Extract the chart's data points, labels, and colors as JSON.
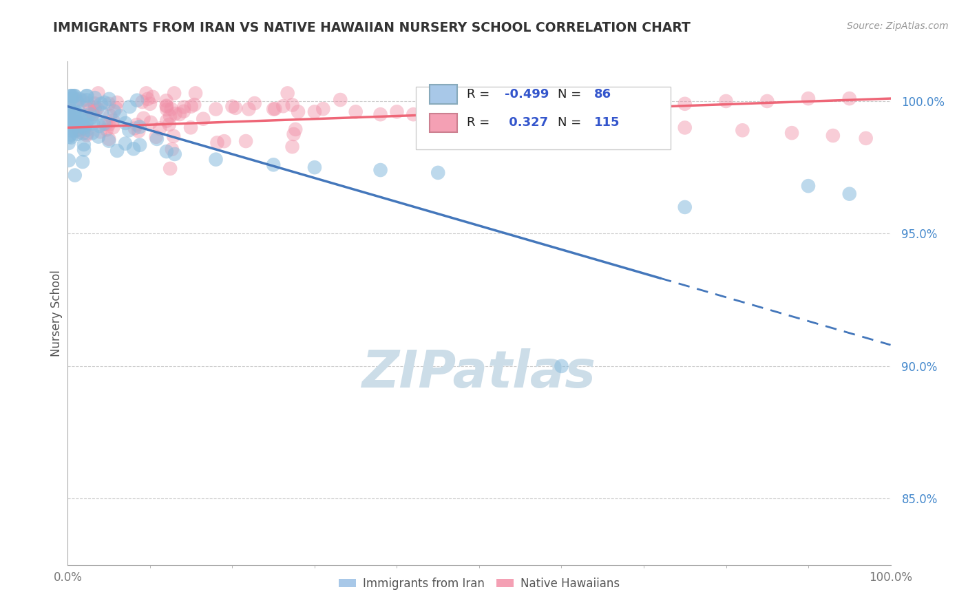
{
  "title": "IMMIGRANTS FROM IRAN VS NATIVE HAWAIIAN NURSERY SCHOOL CORRELATION CHART",
  "source_text": "Source: ZipAtlas.com",
  "ylabel": "Nursery School",
  "xmin": 0.0,
  "xmax": 1.0,
  "ymin": 0.825,
  "ymax": 1.015,
  "yticks": [
    0.85,
    0.9,
    0.95,
    1.0
  ],
  "ytick_labels": [
    "85.0%",
    "90.0%",
    "95.0%",
    "100.0%"
  ],
  "blue_scatter_color": "#88bbdd",
  "pink_scatter_color": "#f090a8",
  "blue_line_color": "#4477bb",
  "pink_line_color": "#ee6677",
  "watermark_color": "#ccdde8",
  "background_color": "#ffffff",
  "grid_color": "#cccccc",
  "title_color": "#333333",
  "blue_R": -0.499,
  "blue_N": 86,
  "pink_R": 0.327,
  "pink_N": 115,
  "blue_line_x0": 0.0,
  "blue_line_y0": 0.998,
  "blue_line_x1": 1.0,
  "blue_line_y1": 0.908,
  "blue_line_solid_end": 0.72,
  "pink_line_x0": 0.0,
  "pink_line_y0": 0.99,
  "pink_line_x1": 1.0,
  "pink_line_y1": 1.001
}
